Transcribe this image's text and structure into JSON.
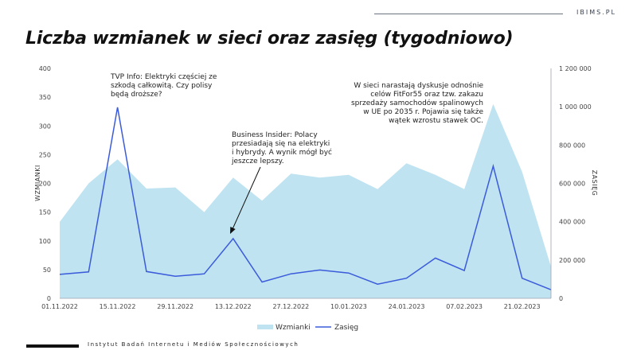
{
  "brand": "IBIMS.PL",
  "footer": "Instytut Badań Internetu i Mediów Społecznościowych",
  "chart_data": {
    "type": "area",
    "title": "Liczba wzmianek w sieci oraz zasięg (tygodniowo)",
    "xlabel": "",
    "ylabel": "WZMIANKI",
    "y2label": "ZASIĘG",
    "ylim": [
      0,
      400
    ],
    "y2lim": [
      0,
      1200000
    ],
    "yticks": [
      "0",
      "50",
      "100",
      "150",
      "200",
      "250",
      "300",
      "350",
      "400"
    ],
    "y2ticks": [
      "0",
      "200 000",
      "400 000",
      "600 000",
      "800 000",
      "1 000 000",
      "1 200 000"
    ],
    "x": [
      "01.11.2022",
      "08.11.2022",
      "15.11.2022",
      "22.11.2022",
      "29.11.2022",
      "06.12.2022",
      "13.12.2022",
      "20.12.2022",
      "27.12.2022",
      "03.01.2023",
      "10.01.2023",
      "17.01.2023",
      "24.01.2023",
      "31.01.2023",
      "07.02.2023",
      "14.02.2023",
      "21.02.2023",
      "28.02.2023"
    ],
    "x_tick_labels": [
      "01.11.2022",
      "15.11.2022",
      "29.11.2022",
      "13.12.2022",
      "27.12.2022",
      "10.01.2023",
      "24.01.2023",
      "07.02.2023",
      "21.02.2023"
    ],
    "series": [
      {
        "name": "Wzmianki",
        "type": "area",
        "axis": "left",
        "color": "#bfe3f0",
        "values": [
          133,
          200,
          242,
          191,
          193,
          150,
          210,
          170,
          217,
          210,
          215,
          190,
          235,
          215,
          190,
          338,
          220,
          55
        ]
      },
      {
        "name": "Zasięg",
        "type": "line",
        "axis": "right",
        "color": "#3b5bdb",
        "values": [
          125000,
          138000,
          997000,
          140000,
          115000,
          128000,
          312000,
          85000,
          128000,
          148000,
          132000,
          74000,
          105000,
          210000,
          145000,
          690000,
          105000,
          45000
        ]
      }
    ],
    "annotations": [
      {
        "lines": [
          "TVP Info: Elektryki częściej ze",
          "szkodą całkowitą. Czy polisy",
          "będą droższe?"
        ]
      },
      {
        "lines": [
          "Business Insider: Polacy",
          "przesiadają się na elektryki",
          "i hybrydy. A wynik mógł być",
          "jeszcze lepszy."
        ]
      },
      {
        "lines": [
          "W sieci narastają dyskusje odnośnie",
          "celów FitFor55 oraz tzw. zakazu",
          "sprzedaży samochodów spalinowych",
          "w UE po 2035 r. Pojawia się także",
          "wątek wzrostu stawek OC."
        ]
      }
    ],
    "legend_position": "bottom-center",
    "grid": false
  }
}
